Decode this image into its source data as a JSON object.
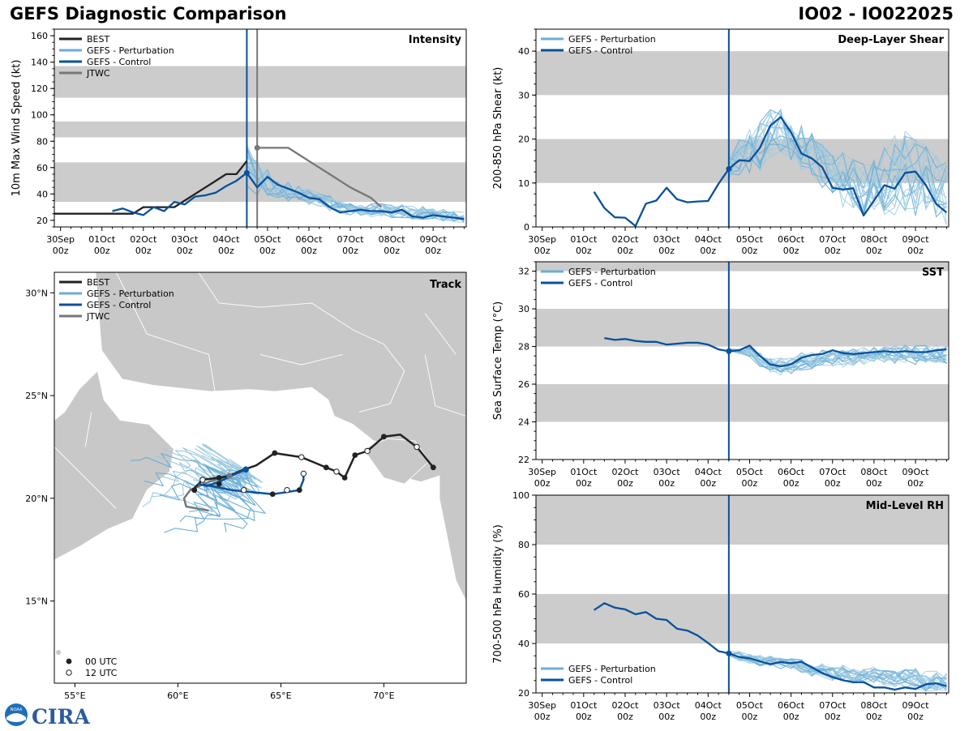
{
  "header": {
    "title": "GEFS Diagnostic Comparison",
    "storm_id": "IO02 - IO022025"
  },
  "colors": {
    "best": "#222222",
    "perturbation": "#6baed6",
    "perturbation_thin": "#9ecae1",
    "control": "#08519c",
    "jtwc": "#777777",
    "band": "#cccccc",
    "land": "#c8c8c8",
    "init_line": "#08519c"
  },
  "time_axis": {
    "labels": [
      [
        "30Sep",
        "00z"
      ],
      [
        "01Oct",
        "00z"
      ],
      [
        "02Oct",
        "00z"
      ],
      [
        "03Oct",
        "00z"
      ],
      [
        "04Oct",
        "00z"
      ],
      [
        "05Oct",
        "00z"
      ],
      [
        "06Oct",
        "00z"
      ],
      [
        "07Oct",
        "00z"
      ],
      [
        "08Oct",
        "00z"
      ],
      [
        "09Oct",
        "00z"
      ]
    ],
    "range_days": [
      -0.15,
      9.8
    ]
  },
  "logo": {
    "text": "CIRA",
    "agency_badge": "NOAA"
  },
  "chart_data": [
    {
      "id": "intensity",
      "type": "line",
      "title": "Intensity",
      "ylabel": "10m Max Wind Speed (kt)",
      "ylim": [
        15,
        165
      ],
      "yticks": [
        20,
        40,
        60,
        80,
        100,
        120,
        140,
        160
      ],
      "bands": [
        [
          34,
          64
        ],
        [
          83,
          95
        ],
        [
          113,
          137
        ]
      ],
      "init_time_day": 4.5,
      "jtwc_init_day": 4.75,
      "legend": [
        "BEST",
        "GEFS - Perturbation",
        "GEFS - Control",
        "JTWC"
      ],
      "series": [
        {
          "name": "BEST",
          "x": [
            -0.2,
            0,
            0.5,
            1,
            1.5,
            1.75,
            2,
            2.25,
            2.5,
            2.75,
            3,
            3.25,
            3.5,
            3.75,
            4,
            4.25,
            4.5
          ],
          "y": [
            25,
            25,
            25,
            25,
            25,
            25,
            30,
            30,
            30,
            30,
            35,
            40,
            45,
            50,
            55,
            55,
            65
          ]
        },
        {
          "name": "GEFS - Control",
          "x": [
            1.25,
            1.5,
            1.75,
            2,
            2.25,
            2.5,
            2.75,
            3,
            3.25,
            3.5,
            3.75,
            4,
            4.25,
            4.5,
            4.75,
            5,
            5.25,
            5.5,
            5.75,
            6,
            6.25,
            6.5,
            6.75,
            7,
            7.25,
            7.5,
            7.75,
            8,
            8.25,
            8.5,
            8.75,
            9,
            9.25,
            9.5,
            9.75
          ],
          "y": [
            27,
            29,
            26,
            24,
            30,
            27,
            34,
            32,
            38,
            39,
            41,
            46,
            50,
            56,
            45,
            53,
            47,
            44,
            41,
            37,
            36,
            30,
            26,
            27,
            28,
            27,
            27,
            26,
            28,
            23,
            22,
            24,
            23,
            22,
            21
          ]
        },
        {
          "name": "JTWC",
          "x": [
            4.75,
            5,
            5.25,
            5.5,
            6,
            6.5,
            7,
            7.5,
            7.75
          ],
          "y": [
            75,
            75,
            75,
            75,
            65,
            55,
            45,
            37,
            30
          ]
        }
      ],
      "perturbation_summary": {
        "x": [
          4.5,
          4.75,
          5,
          5.25,
          5.5,
          5.75,
          6,
          6.25,
          6.5,
          6.75,
          7,
          7.25,
          7.5,
          7.75,
          8,
          8.25,
          8.5,
          8.75,
          9,
          9.25,
          9.5,
          9.75
        ],
        "mean": [
          60,
          52,
          48,
          45,
          42,
          40,
          38,
          36,
          33,
          30,
          29,
          28,
          28,
          28,
          27,
          27,
          26,
          25,
          25,
          24,
          23,
          22
        ],
        "spread": [
          18,
          14,
          10,
          8,
          7,
          6,
          6,
          6,
          6,
          5,
          5,
          5,
          5,
          5,
          5,
          5,
          5,
          5,
          4,
          4,
          4,
          4
        ]
      }
    },
    {
      "id": "track",
      "type": "map",
      "title": "Track",
      "lon_range": [
        54,
        74
      ],
      "lat_range": [
        11,
        31
      ],
      "lon_ticks": [
        55,
        60,
        65,
        70
      ],
      "lon_tick_labels": [
        "55°E",
        "60°E",
        "65°E",
        "70°E"
      ],
      "lat_ticks": [
        15,
        20,
        25,
        30
      ],
      "lat_tick_labels": [
        "15°N",
        "20°N",
        "25°N",
        "30°N"
      ],
      "legend": [
        "BEST",
        "GEFS - Perturbation",
        "GEFS - Control",
        "JTWC"
      ],
      "marker_legend": [
        "00 UTC",
        "12 UTC"
      ],
      "best_track": [
        [
          72.4,
          21.5
        ],
        [
          71.6,
          22.5
        ],
        [
          70.8,
          23.1
        ],
        [
          70.0,
          23.0
        ],
        [
          69.2,
          22.3
        ],
        [
          68.6,
          22.1
        ],
        [
          68.1,
          21.0
        ],
        [
          67.7,
          21.3
        ],
        [
          67.2,
          21.5
        ],
        [
          66.0,
          22.0
        ],
        [
          64.7,
          22.2
        ],
        [
          63.8,
          21.6
        ],
        [
          63.2,
          21.4
        ],
        [
          62.5,
          21.1
        ],
        [
          62.0,
          21.0
        ],
        [
          61.2,
          20.9
        ],
        [
          60.8,
          20.5
        ]
      ],
      "best_markers_00": [
        [
          72.4,
          21.5
        ],
        [
          70.0,
          23.0
        ],
        [
          68.6,
          22.1
        ],
        [
          68.1,
          21.0
        ],
        [
          67.2,
          21.5
        ],
        [
          64.7,
          22.2
        ],
        [
          62.0,
          21.0
        ],
        [
          62.0,
          20.7
        ],
        [
          60.8,
          20.4
        ],
        [
          64.6,
          20.2
        ],
        [
          65.9,
          20.4
        ]
      ],
      "best_markers_12": [
        [
          71.6,
          22.5
        ],
        [
          69.2,
          22.3
        ],
        [
          67.7,
          21.3
        ],
        [
          66.0,
          22.0
        ],
        [
          61.2,
          20.9
        ],
        [
          63.2,
          20.4
        ],
        [
          65.3,
          20.4
        ],
        [
          66.1,
          21.2
        ]
      ],
      "control_track": [
        [
          63.3,
          21.4
        ],
        [
          62.6,
          21.1
        ],
        [
          62.0,
          20.8
        ],
        [
          61.4,
          20.6
        ],
        [
          61.0,
          20.7
        ],
        [
          61.6,
          20.6
        ],
        [
          62.6,
          20.4
        ],
        [
          63.6,
          20.3
        ],
        [
          64.6,
          20.2
        ],
        [
          65.3,
          20.3
        ],
        [
          65.9,
          20.4
        ],
        [
          66.1,
          20.9
        ],
        [
          66.1,
          21.2
        ]
      ],
      "jtwc_track": [
        [
          62.5,
          21.1
        ],
        [
          61.5,
          20.8
        ],
        [
          60.6,
          20.4
        ],
        [
          60.3,
          20.0
        ],
        [
          60.4,
          19.6
        ],
        [
          61.5,
          19.4
        ]
      ]
    },
    {
      "id": "shear",
      "type": "line",
      "title": "Deep-Layer Shear",
      "ylabel": "200-850 hPa Shear (kt)",
      "ylim": [
        0,
        45
      ],
      "yticks": [
        0,
        10,
        20,
        30,
        40
      ],
      "bands": [
        [
          10,
          20
        ],
        [
          30,
          40
        ]
      ],
      "init_time_day": 4.5,
      "legend": [
        "GEFS - Perturbation",
        "GEFS - Control"
      ],
      "series": [
        {
          "name": "GEFS - Control",
          "x": [
            1.25,
            1.5,
            1.75,
            2,
            2.25,
            2.5,
            2.75,
            3,
            3.25,
            3.5,
            3.75,
            4,
            4.25,
            4.5,
            4.75,
            5,
            5.25,
            5.5,
            5.75,
            6,
            6.25,
            6.5,
            6.75,
            7,
            7.25,
            7.5,
            7.75,
            8,
            8.25,
            8.5,
            8.75,
            9,
            9.25,
            9.5,
            9.75
          ],
          "y": [
            8,
            4.3,
            2.2,
            2.1,
            0.2,
            5.3,
            6.0,
            8.9,
            6.3,
            5.6,
            5.8,
            5.9,
            9.8,
            13.2,
            15.2,
            15.0,
            18.0,
            23.0,
            25.0,
            21.5,
            16.7,
            15.6,
            13.6,
            8.9,
            8.5,
            8.8,
            2.6,
            6.0,
            9.5,
            8.7,
            12.3,
            12.6,
            9.5,
            5.2,
            3.3
          ]
        }
      ],
      "perturbation_summary": {
        "x": [
          4.5,
          4.75,
          5,
          5.25,
          5.5,
          5.75,
          6,
          6.25,
          6.5,
          6.75,
          7,
          7.25,
          7.5,
          7.75,
          8,
          8.25,
          8.5,
          8.75,
          9,
          9.25,
          9.5,
          9.75
        ],
        "mean": [
          14,
          16,
          17,
          19,
          21,
          22,
          20,
          18,
          16,
          14,
          12,
          11,
          10,
          9,
          10,
          11,
          12,
          13,
          12,
          11,
          9,
          8
        ],
        "spread": [
          3,
          4,
          5,
          6,
          6,
          5,
          5,
          5,
          5,
          5,
          5,
          6,
          6,
          6,
          7,
          8,
          9,
          10,
          9,
          8,
          7,
          7
        ]
      }
    },
    {
      "id": "sst",
      "type": "line",
      "title": "SST",
      "ylabel": "Sea Surface Temp (°C)",
      "ylim": [
        22,
        32.5
      ],
      "yticks": [
        22,
        24,
        26,
        28,
        30,
        32
      ],
      "bands": [
        [
          24,
          26
        ],
        [
          28,
          30
        ],
        [
          32,
          32.5
        ]
      ],
      "init_time_day": 4.5,
      "legend": [
        "GEFS - Perturbation",
        "GEFS - Control"
      ],
      "series": [
        {
          "name": "GEFS - Control",
          "x": [
            1.5,
            1.75,
            2,
            2.25,
            2.5,
            2.75,
            3,
            3.25,
            3.5,
            3.75,
            4,
            4.25,
            4.5,
            4.75,
            5,
            5.25,
            5.5,
            5.75,
            6,
            6.25,
            6.5,
            6.75,
            7,
            7.25,
            7.5,
            7.75,
            8,
            8.25,
            8.5,
            8.75,
            9,
            9.25,
            9.5,
            9.75
          ],
          "y": [
            28.45,
            28.35,
            28.4,
            28.3,
            28.25,
            28.25,
            28.1,
            28.15,
            28.2,
            28.2,
            28.1,
            27.85,
            27.75,
            27.8,
            28.05,
            27.5,
            27.05,
            26.95,
            27.05,
            27.4,
            27.55,
            27.6,
            27.8,
            27.65,
            27.6,
            27.65,
            27.7,
            27.75,
            27.7,
            27.75,
            27.7,
            27.7,
            27.8,
            27.85
          ]
        }
      ],
      "perturbation_summary": {
        "x": [
          4.5,
          4.75,
          5,
          5.25,
          5.5,
          5.75,
          6,
          6.25,
          6.5,
          6.75,
          7,
          7.25,
          7.5,
          7.75,
          8,
          8.25,
          8.5,
          8.75,
          9,
          9.25,
          9.5,
          9.75
        ],
        "mean": [
          27.8,
          27.75,
          27.7,
          27.3,
          27.0,
          26.95,
          27.0,
          27.2,
          27.3,
          27.35,
          27.4,
          27.4,
          27.45,
          27.5,
          27.5,
          27.55,
          27.55,
          27.6,
          27.6,
          27.6,
          27.6,
          27.55
        ],
        "spread": [
          0.1,
          0.15,
          0.25,
          0.35,
          0.4,
          0.45,
          0.45,
          0.45,
          0.45,
          0.45,
          0.45,
          0.45,
          0.45,
          0.45,
          0.45,
          0.45,
          0.45,
          0.45,
          0.5,
          0.5,
          0.5,
          0.5
        ]
      }
    },
    {
      "id": "rh",
      "type": "line",
      "title": "Mid-Level RH",
      "ylabel": "700-500 hPa Humidity (%)",
      "ylim": [
        20,
        100
      ],
      "yticks": [
        20,
        40,
        60,
        80,
        100
      ],
      "bands": [
        [
          40,
          60
        ],
        [
          80,
          100
        ]
      ],
      "init_time_day": 4.5,
      "legend": [
        "GEFS - Perturbation",
        "GEFS - Control"
      ],
      "series": [
        {
          "name": "GEFS - Control",
          "x": [
            1.25,
            1.5,
            1.75,
            2,
            2.25,
            2.5,
            2.75,
            3,
            3.25,
            3.5,
            3.75,
            4,
            4.25,
            4.5,
            4.75,
            5,
            5.25,
            5.5,
            5.75,
            6,
            6.25,
            6.5,
            6.75,
            7,
            7.25,
            7.5,
            7.75,
            8,
            8.25,
            8.5,
            8.75,
            9,
            9.25,
            9.5,
            9.75
          ],
          "y": [
            53.5,
            56.3,
            54.5,
            53.8,
            51.8,
            52.7,
            50.0,
            49.5,
            46.0,
            45.2,
            43.2,
            40.2,
            36.9,
            36.0,
            34.5,
            34.0,
            32.8,
            31.6,
            32.5,
            32.0,
            32.6,
            30.4,
            28.0,
            26.4,
            25.1,
            24.3,
            24.4,
            22.2,
            22.2,
            21.3,
            22.2,
            21.6,
            23.5,
            23.9,
            22.7
          ]
        }
      ],
      "perturbation_summary": {
        "x": [
          4.5,
          4.75,
          5,
          5.25,
          5.5,
          5.75,
          6,
          6.25,
          6.5,
          6.75,
          7,
          7.25,
          7.5,
          7.75,
          8,
          8.25,
          8.5,
          8.75,
          9,
          9.25,
          9.5,
          9.75
        ],
        "mean": [
          36,
          35,
          34,
          33,
          33,
          32,
          32,
          31,
          30,
          29,
          28,
          28,
          27,
          27,
          27,
          26,
          26,
          26,
          26,
          25,
          25,
          25
        ],
        "spread": [
          1,
          2,
          2,
          2,
          2,
          2,
          2,
          3,
          3,
          3,
          3,
          3,
          3,
          3,
          3,
          3,
          4,
          4,
          4,
          4,
          4,
          4
        ]
      }
    }
  ]
}
